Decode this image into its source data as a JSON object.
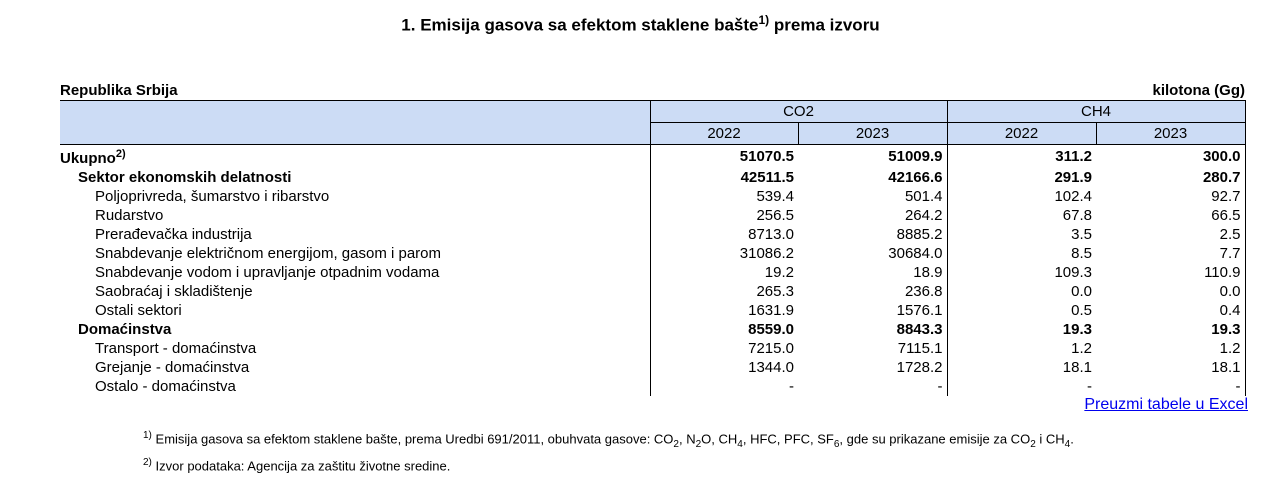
{
  "title": {
    "before_sup": "1. Emisija gasova sa efektom staklene bašte",
    "sup": "1)",
    "after_sup": " prema izvoru"
  },
  "table": {
    "region_label": "Republika Srbija",
    "unit_label": "kilotona (Gg)",
    "groups": [
      {
        "label": "CO2",
        "years": [
          "2022",
          "2023"
        ]
      },
      {
        "label": "CH4",
        "years": [
          "2022",
          "2023"
        ]
      }
    ],
    "rows": [
      {
        "label": "Ukupno",
        "label_sup": "2)",
        "bold": true,
        "indent": 0,
        "values": [
          "51070.5",
          "51009.9",
          "311.2",
          "300.0"
        ]
      },
      {
        "label": "Sektor ekonomskih delatnosti",
        "bold": true,
        "indent": 1,
        "values": [
          "42511.5",
          "42166.6",
          "291.9",
          "280.7"
        ]
      },
      {
        "label": "Poljoprivreda, šumarstvo i ribarstvo",
        "bold": false,
        "indent": 2,
        "values": [
          "539.4",
          "501.4",
          "102.4",
          "92.7"
        ]
      },
      {
        "label": "Rudarstvo",
        "bold": false,
        "indent": 2,
        "values": [
          "256.5",
          "264.2",
          "67.8",
          "66.5"
        ]
      },
      {
        "label": "Prerađevačka industrija",
        "bold": false,
        "indent": 2,
        "values": [
          "8713.0",
          "8885.2",
          "3.5",
          "2.5"
        ]
      },
      {
        "label": "Snabdevanje električnom energijom, gasom i parom",
        "bold": false,
        "indent": 2,
        "values": [
          "31086.2",
          "30684.0",
          "8.5",
          "7.7"
        ]
      },
      {
        "label": "Snabdevanje vodom i upravljanje otpadnim vodama",
        "bold": false,
        "indent": 2,
        "values": [
          "19.2",
          "18.9",
          "109.3",
          "110.9"
        ]
      },
      {
        "label": "Saobraćaj i skladištenje",
        "bold": false,
        "indent": 2,
        "values": [
          "265.3",
          "236.8",
          "0.0",
          "0.0"
        ]
      },
      {
        "label": "Ostali sektori",
        "bold": false,
        "indent": 2,
        "values": [
          "1631.9",
          "1576.1",
          "0.5",
          "0.4"
        ]
      },
      {
        "label": "Domaćinstva",
        "bold": true,
        "indent": 1,
        "values": [
          "8559.0",
          "8843.3",
          "19.3",
          "19.3"
        ]
      },
      {
        "label": "Transport - domaćinstva",
        "bold": false,
        "indent": 2,
        "values": [
          "7215.0",
          "7115.1",
          "1.2",
          "1.2"
        ]
      },
      {
        "label": "Grejanje - domaćinstva",
        "bold": false,
        "indent": 2,
        "values": [
          "1344.0",
          "1728.2",
          "18.1",
          "18.1"
        ]
      },
      {
        "label": "Ostalo - domaćinstva",
        "bold": false,
        "indent": 2,
        "values": [
          "-",
          "-",
          "-",
          "-"
        ]
      }
    ]
  },
  "excel_link": "Preuzmi tabele u Excel",
  "footnotes": [
    {
      "marker": "1)",
      "segments": [
        {
          "t": "Emisija gasova sa efektom staklene bašte, prema Uredbi 691/2011, obuhvata gasove: CO"
        },
        {
          "sub": "2"
        },
        {
          "t": ", N"
        },
        {
          "sub": "2"
        },
        {
          "t": "O, CH"
        },
        {
          "sub": "4"
        },
        {
          "t": ", HFC, PFC, SF"
        },
        {
          "sub": "6"
        },
        {
          "t": ", gde su prikazane emisije za CO"
        },
        {
          "sub": "2"
        },
        {
          "t": " i CH"
        },
        {
          "sub": "4"
        },
        {
          "t": "."
        }
      ]
    },
    {
      "marker": "2)",
      "segments": [
        {
          "t": "Izvor podataka: Agencija za zaštitu životne sredine."
        }
      ]
    }
  ],
  "colors": {
    "header_bg": "#ccdcf5",
    "link": "#0000ee",
    "border": "#000000"
  }
}
